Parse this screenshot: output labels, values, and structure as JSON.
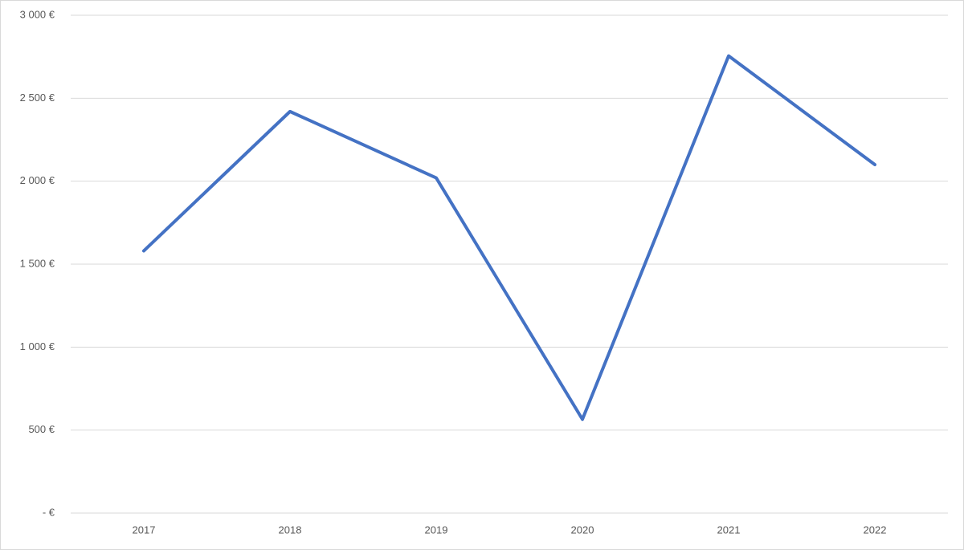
{
  "chart_data": {
    "type": "line",
    "categories": [
      "2017",
      "2018",
      "2019",
      "2020",
      "2021",
      "2022"
    ],
    "series": [
      {
        "color": "#4472c4",
        "values": [
          1580,
          2420,
          2020,
          565,
          2755,
          2100
        ]
      }
    ],
    "ylim": [
      0,
      3000
    ],
    "yticks": [
      {
        "value": 0,
        "label": "-  €"
      },
      {
        "value": 500,
        "label": "500 €"
      },
      {
        "value": 1000,
        "label": "1 000 €"
      },
      {
        "value": 1500,
        "label": "1 500 €"
      },
      {
        "value": 2000,
        "label": "2 000 €"
      },
      {
        "value": 2500,
        "label": "2 500 €"
      },
      {
        "value": 3000,
        "label": "3 000 €"
      }
    ],
    "grid": true
  }
}
